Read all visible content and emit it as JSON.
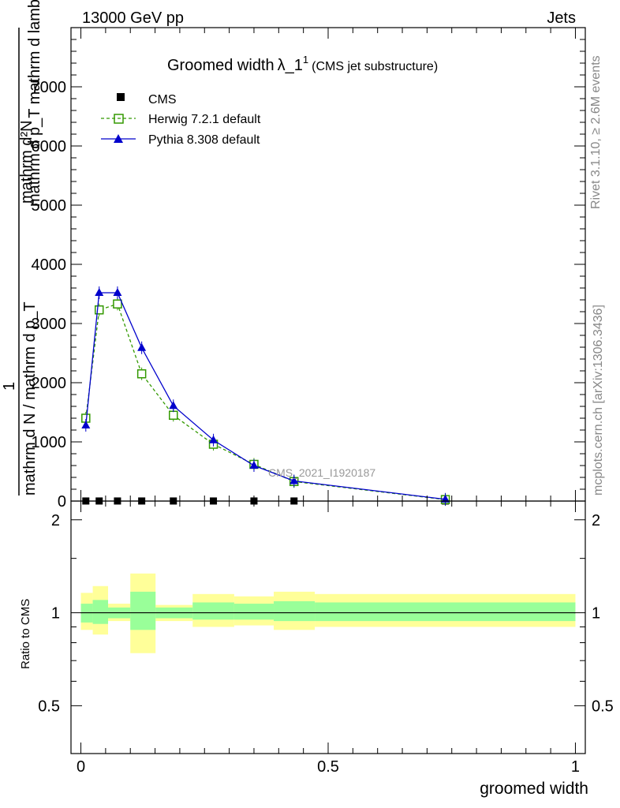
{
  "header": {
    "left": "13000 GeV pp",
    "right": "Jets"
  },
  "side": {
    "rivet": "Rivet 3.1.10, ≥ 2.6M events",
    "mcplots": "mcplots.cern.ch [arXiv:1306.3436]"
  },
  "chart_data": {
    "type": "line",
    "title": "Groomed width",
    "title_symbol": "λ_1",
    "title_sup": "1",
    "title_note": "(CMS jet substructure)",
    "watermark": "CMS_2021_I1920187",
    "ylabel_top": "mathrm d²N",
    "ylabel_bottom": "mathrm d p_T mathrm d lambda",
    "ylabel_frac": "1",
    "ylabel_frac_den": "mathrm d N / mathrm d p_T",
    "xlabel": "groomed width",
    "ratio_ylabel": "Ratio to CMS",
    "xlim": [
      -0.02,
      1.02
    ],
    "ylim": [
      0,
      8000
    ],
    "ratio_ylim": [
      0.35,
      2.3
    ],
    "x_ticks": [
      "0",
      "0.5",
      "1"
    ],
    "y_ticks": [
      "0",
      "1000",
      "2000",
      "3000",
      "4000",
      "5000",
      "6000",
      "7000"
    ],
    "ratio_ticks": [
      "0.5",
      "1",
      "2"
    ],
    "legend_position": "top-left",
    "series": [
      {
        "name": "CMS",
        "color": "#000000",
        "marker": "square",
        "x": [
          0.01,
          0.037,
          0.074,
          0.123,
          0.187,
          0.268,
          0.35,
          0.431,
          0.737
        ],
        "y": [
          1,
          1,
          1,
          1,
          1,
          1,
          1,
          1,
          1
        ]
      },
      {
        "name": "Herwig 7.2.1 default",
        "color": "#339900",
        "marker": "open-square",
        "x": [
          0.01,
          0.037,
          0.074,
          0.123,
          0.187,
          0.268,
          0.35,
          0.431,
          0.737
        ],
        "y": [
          1400,
          3230,
          3330,
          2150,
          1450,
          960,
          620,
          330,
          25
        ]
      },
      {
        "name": "Pythia 8.308 default",
        "color": "#0000cc",
        "marker": "triangle",
        "x": [
          0.01,
          0.037,
          0.074,
          0.123,
          0.187,
          0.268,
          0.35,
          0.431,
          0.737
        ],
        "y": [
          1280,
          3520,
          3520,
          2590,
          1610,
          1030,
          600,
          340,
          30
        ]
      }
    ],
    "ratio_bands": [
      {
        "x0": 0.0,
        "x1": 0.024,
        "g_lo": 0.93,
        "g_hi": 1.07,
        "y_lo": 0.88,
        "y_hi": 1.16
      },
      {
        "x0": 0.024,
        "x1": 0.055,
        "g_lo": 0.92,
        "g_hi": 1.1,
        "y_lo": 0.85,
        "y_hi": 1.22
      },
      {
        "x0": 0.055,
        "x1": 0.1,
        "g_lo": 0.96,
        "g_hi": 1.04,
        "y_lo": 0.94,
        "y_hi": 1.07
      },
      {
        "x0": 0.1,
        "x1": 0.151,
        "g_lo": 0.88,
        "g_hi": 1.17,
        "y_lo": 0.74,
        "y_hi": 1.34
      },
      {
        "x0": 0.151,
        "x1": 0.226,
        "g_lo": 0.96,
        "g_hi": 1.04,
        "y_lo": 0.94,
        "y_hi": 1.06
      },
      {
        "x0": 0.226,
        "x1": 0.31,
        "g_lo": 0.95,
        "g_hi": 1.08,
        "y_lo": 0.9,
        "y_hi": 1.15
      },
      {
        "x0": 0.31,
        "x1": 0.39,
        "g_lo": 0.95,
        "g_hi": 1.07,
        "y_lo": 0.91,
        "y_hi": 1.13
      },
      {
        "x0": 0.39,
        "x1": 0.473,
        "g_lo": 0.94,
        "g_hi": 1.09,
        "y_lo": 0.88,
        "y_hi": 1.17
      },
      {
        "x0": 0.473,
        "x1": 1.0,
        "g_lo": 0.94,
        "g_hi": 1.08,
        "y_lo": 0.9,
        "y_hi": 1.15
      }
    ],
    "colors": {
      "green_band": "#99ff99",
      "yellow_band": "#ffff99"
    }
  }
}
